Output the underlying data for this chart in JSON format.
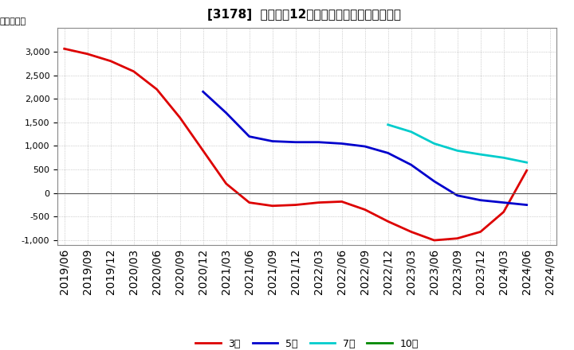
{
  "title": "[3178]  経常利益12か月移動合計の平均値の推移",
  "ylabel": "（百万円）",
  "ylim": [
    -1100,
    3500
  ],
  "yticks": [
    -1000,
    -500,
    0,
    500,
    1000,
    1500,
    2000,
    2500,
    3000
  ],
  "background_color": "#ffffff",
  "plot_bg_color": "#ffffff",
  "grid_color": "#aaaaaa",
  "series": {
    "3year": {
      "color": "#dd0000",
      "label": "3年",
      "x": [
        "2019/06",
        "2019/09",
        "2019/12",
        "2020/03",
        "2020/06",
        "2020/09",
        "2020/12",
        "2021/03",
        "2021/06",
        "2021/09",
        "2021/12",
        "2022/03",
        "2022/06",
        "2022/09",
        "2022/12",
        "2023/03",
        "2023/06",
        "2023/09",
        "2023/12",
        "2024/03",
        "2024/06"
      ],
      "y": [
        3060,
        2950,
        2800,
        2580,
        2200,
        1600,
        900,
        200,
        -200,
        -270,
        -250,
        -200,
        -180,
        -350,
        -600,
        -820,
        -1000,
        -960,
        -820,
        -400,
        480
      ]
    },
    "5year": {
      "color": "#0000cc",
      "label": "5年",
      "x": [
        "2020/12",
        "2021/03",
        "2021/06",
        "2021/09",
        "2021/12",
        "2022/03",
        "2022/06",
        "2022/09",
        "2022/12",
        "2023/03",
        "2023/06",
        "2023/09",
        "2023/12",
        "2024/03",
        "2024/06"
      ],
      "y": [
        2150,
        1700,
        1200,
        1100,
        1080,
        1080,
        1050,
        990,
        850,
        600,
        250,
        -50,
        -150,
        -200,
        -250
      ]
    },
    "7year": {
      "color": "#00cccc",
      "label": "7年",
      "x": [
        "2022/12",
        "2023/03",
        "2023/06",
        "2023/09",
        "2023/12",
        "2024/03",
        "2024/06"
      ],
      "y": [
        1450,
        1300,
        1050,
        900,
        820,
        750,
        650
      ]
    },
    "10year": {
      "color": "#008800",
      "label": "10年",
      "x": [],
      "y": []
    }
  },
  "xtick_labels": [
    "2019/06",
    "2019/09",
    "2019/12",
    "2020/03",
    "2020/06",
    "2020/09",
    "2020/12",
    "2021/03",
    "2021/06",
    "2021/09",
    "2021/12",
    "2022/03",
    "2022/06",
    "2022/09",
    "2022/12",
    "2023/03",
    "2023/06",
    "2023/09",
    "2023/12",
    "2024/03",
    "2024/06",
    "2024/09"
  ]
}
